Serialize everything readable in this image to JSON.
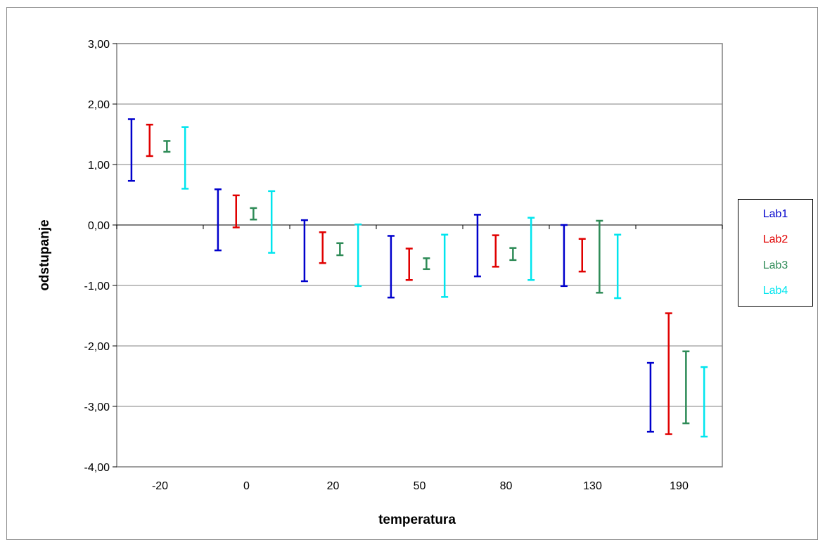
{
  "chart_data": {
    "type": "error-bar",
    "xlabel": "temperatura",
    "ylabel": "odstupanje",
    "ylim": [
      -4,
      3
    ],
    "yticks": [
      "3,00",
      "2,00",
      "1,00",
      "0,00",
      "-1,00",
      "-2,00",
      "-3,00",
      "-4,00"
    ],
    "ytick_values": [
      3,
      2,
      1,
      0,
      -1,
      -2,
      -3,
      -4
    ],
    "categories": [
      "-20",
      "0",
      "20",
      "50",
      "80",
      "130",
      "190"
    ],
    "grid": true,
    "legend_position": "right",
    "series": [
      {
        "name": "Lab1",
        "color": "#0000cc",
        "low": [
          0.73,
          -0.42,
          -0.93,
          -1.2,
          -0.85,
          -1.01,
          -3.42
        ],
        "high": [
          1.75,
          0.59,
          0.08,
          -0.18,
          0.17,
          0.0,
          -2.28
        ]
      },
      {
        "name": "Lab2",
        "color": "#e00000",
        "low": [
          1.14,
          -0.04,
          -0.63,
          -0.91,
          -0.69,
          -0.77,
          -3.46
        ],
        "high": [
          1.66,
          0.49,
          -0.12,
          -0.39,
          -0.17,
          -0.23,
          -1.46
        ]
      },
      {
        "name": "Lab3",
        "color": "#2e8b57",
        "low": [
          1.21,
          0.09,
          -0.5,
          -0.73,
          -0.58,
          -1.12,
          -3.28
        ],
        "high": [
          1.39,
          0.28,
          -0.3,
          -0.55,
          -0.38,
          0.07,
          -2.09
        ]
      },
      {
        "name": "Lab4",
        "color": "#00e5ee",
        "low": [
          0.6,
          -0.46,
          -1.01,
          -1.19,
          -0.91,
          -1.21,
          -3.5
        ],
        "high": [
          1.62,
          0.56,
          0.01,
          -0.16,
          0.12,
          -0.16,
          -2.35
        ]
      }
    ]
  }
}
